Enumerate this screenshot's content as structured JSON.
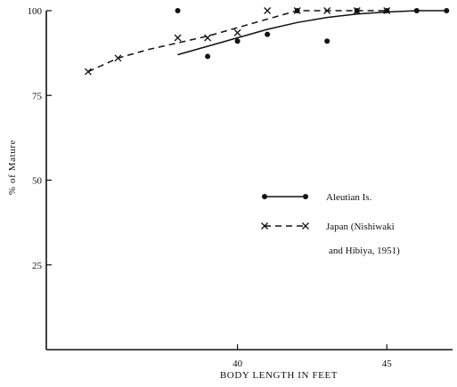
{
  "chart_data": {
    "type": "scatter",
    "title": "",
    "xlabel": "BODY LENGTH IN FEET",
    "ylabel": "% of Mature",
    "xlim": [
      33.6,
      47.2
    ],
    "ylim": [
      0,
      100
    ],
    "x_ticks": [
      {
        "value": 40,
        "label": "40"
      },
      {
        "value": 45,
        "label": "45"
      }
    ],
    "y_ticks": [
      {
        "value": 100,
        "label": "100"
      },
      {
        "value": 75,
        "label": "75"
      },
      {
        "value": 50,
        "label": "50"
      },
      {
        "value": 25,
        "label": "25"
      }
    ],
    "grid": false,
    "legend_position": "middle-right",
    "series": [
      {
        "name": "Aleutian Is.",
        "marker": "dot",
        "line": "solid",
        "points": [
          {
            "x": 38,
            "y": 100
          },
          {
            "x": 39,
            "y": 86.5
          },
          {
            "x": 40,
            "y": 91
          },
          {
            "x": 41,
            "y": 93
          },
          {
            "x": 42,
            "y": 100
          },
          {
            "x": 43,
            "y": 91
          },
          {
            "x": 44,
            "y": 100
          },
          {
            "x": 45,
            "y": 100
          },
          {
            "x": 46,
            "y": 100
          },
          {
            "x": 47,
            "y": 100
          }
        ],
        "fit_curve": [
          {
            "x": 38,
            "y": 87
          },
          {
            "x": 39,
            "y": 89.5
          },
          {
            "x": 40,
            "y": 92
          },
          {
            "x": 41,
            "y": 94.5
          },
          {
            "x": 42,
            "y": 96.5
          },
          {
            "x": 43,
            "y": 98
          },
          {
            "x": 44,
            "y": 99
          },
          {
            "x": 45,
            "y": 99.6
          },
          {
            "x": 46,
            "y": 100
          },
          {
            "x": 47,
            "y": 100
          }
        ]
      },
      {
        "name": "Japan (Nishiwaki and Hibiya, 1951)",
        "marker": "x",
        "line": "dashed",
        "points": [
          {
            "x": 35,
            "y": 82
          },
          {
            "x": 36,
            "y": 86
          },
          {
            "x": 38,
            "y": 92
          },
          {
            "x": 39,
            "y": 92
          },
          {
            "x": 40,
            "y": 93.5
          },
          {
            "x": 41,
            "y": 100
          },
          {
            "x": 42,
            "y": 100
          },
          {
            "x": 43,
            "y": 100
          },
          {
            "x": 44,
            "y": 100
          },
          {
            "x": 45,
            "y": 100
          }
        ],
        "fit_curve": [
          {
            "x": 35,
            "y": 82
          },
          {
            "x": 36,
            "y": 86
          },
          {
            "x": 37,
            "y": 88.5
          },
          {
            "x": 38,
            "y": 90.5
          },
          {
            "x": 39,
            "y": 92.5
          },
          {
            "x": 40,
            "y": 95
          },
          {
            "x": 41,
            "y": 97.5
          },
          {
            "x": 42,
            "y": 100
          },
          {
            "x": 43,
            "y": 100
          },
          {
            "x": 44,
            "y": 100
          },
          {
            "x": 45,
            "y": 100
          }
        ]
      }
    ]
  },
  "legend": {
    "entries": [
      {
        "lines": [
          "Aleutian Is."
        ]
      },
      {
        "lines": [
          "Japan (Nishiwaki",
          "and Hibiya, 1951)"
        ]
      }
    ]
  }
}
